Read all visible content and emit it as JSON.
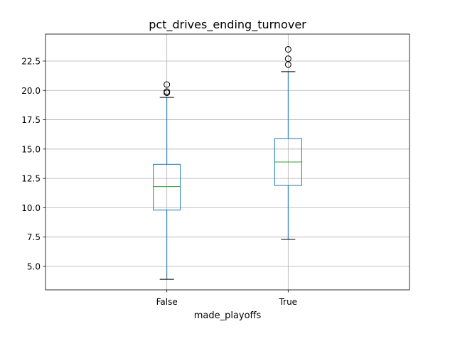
{
  "chart_data": {
    "type": "box",
    "title": "pct_drives_ending_turnover",
    "xlabel": "made_playoffs",
    "ylabel": "",
    "categories": [
      "False",
      "True"
    ],
    "ylim": [
      3.0,
      24.8
    ],
    "yticks": [
      5.0,
      7.5,
      10.0,
      12.5,
      15.0,
      17.5,
      20.0,
      22.5
    ],
    "ytick_labels": [
      "5.0",
      "7.5",
      "10.0",
      "12.5",
      "15.0",
      "17.5",
      "20.0",
      "22.5"
    ],
    "grid": true,
    "series": [
      {
        "category": "False",
        "whisker_low": 3.9,
        "q1": 9.8,
        "median": 11.8,
        "q3": 13.7,
        "whisker_high": 19.4,
        "outliers": [
          19.8,
          19.9,
          20.5
        ]
      },
      {
        "category": "True",
        "whisker_low": 7.3,
        "q1": 11.9,
        "median": 13.9,
        "q3": 15.9,
        "whisker_high": 21.6,
        "outliers": [
          22.2,
          22.7,
          23.5
        ]
      }
    ],
    "colors": {
      "box": "#1f77b4",
      "median": "#2ca02c",
      "whisker_cap": "#000000",
      "outlier": "#000000",
      "grid": "#b0b0b0",
      "axes": "#000000"
    }
  }
}
